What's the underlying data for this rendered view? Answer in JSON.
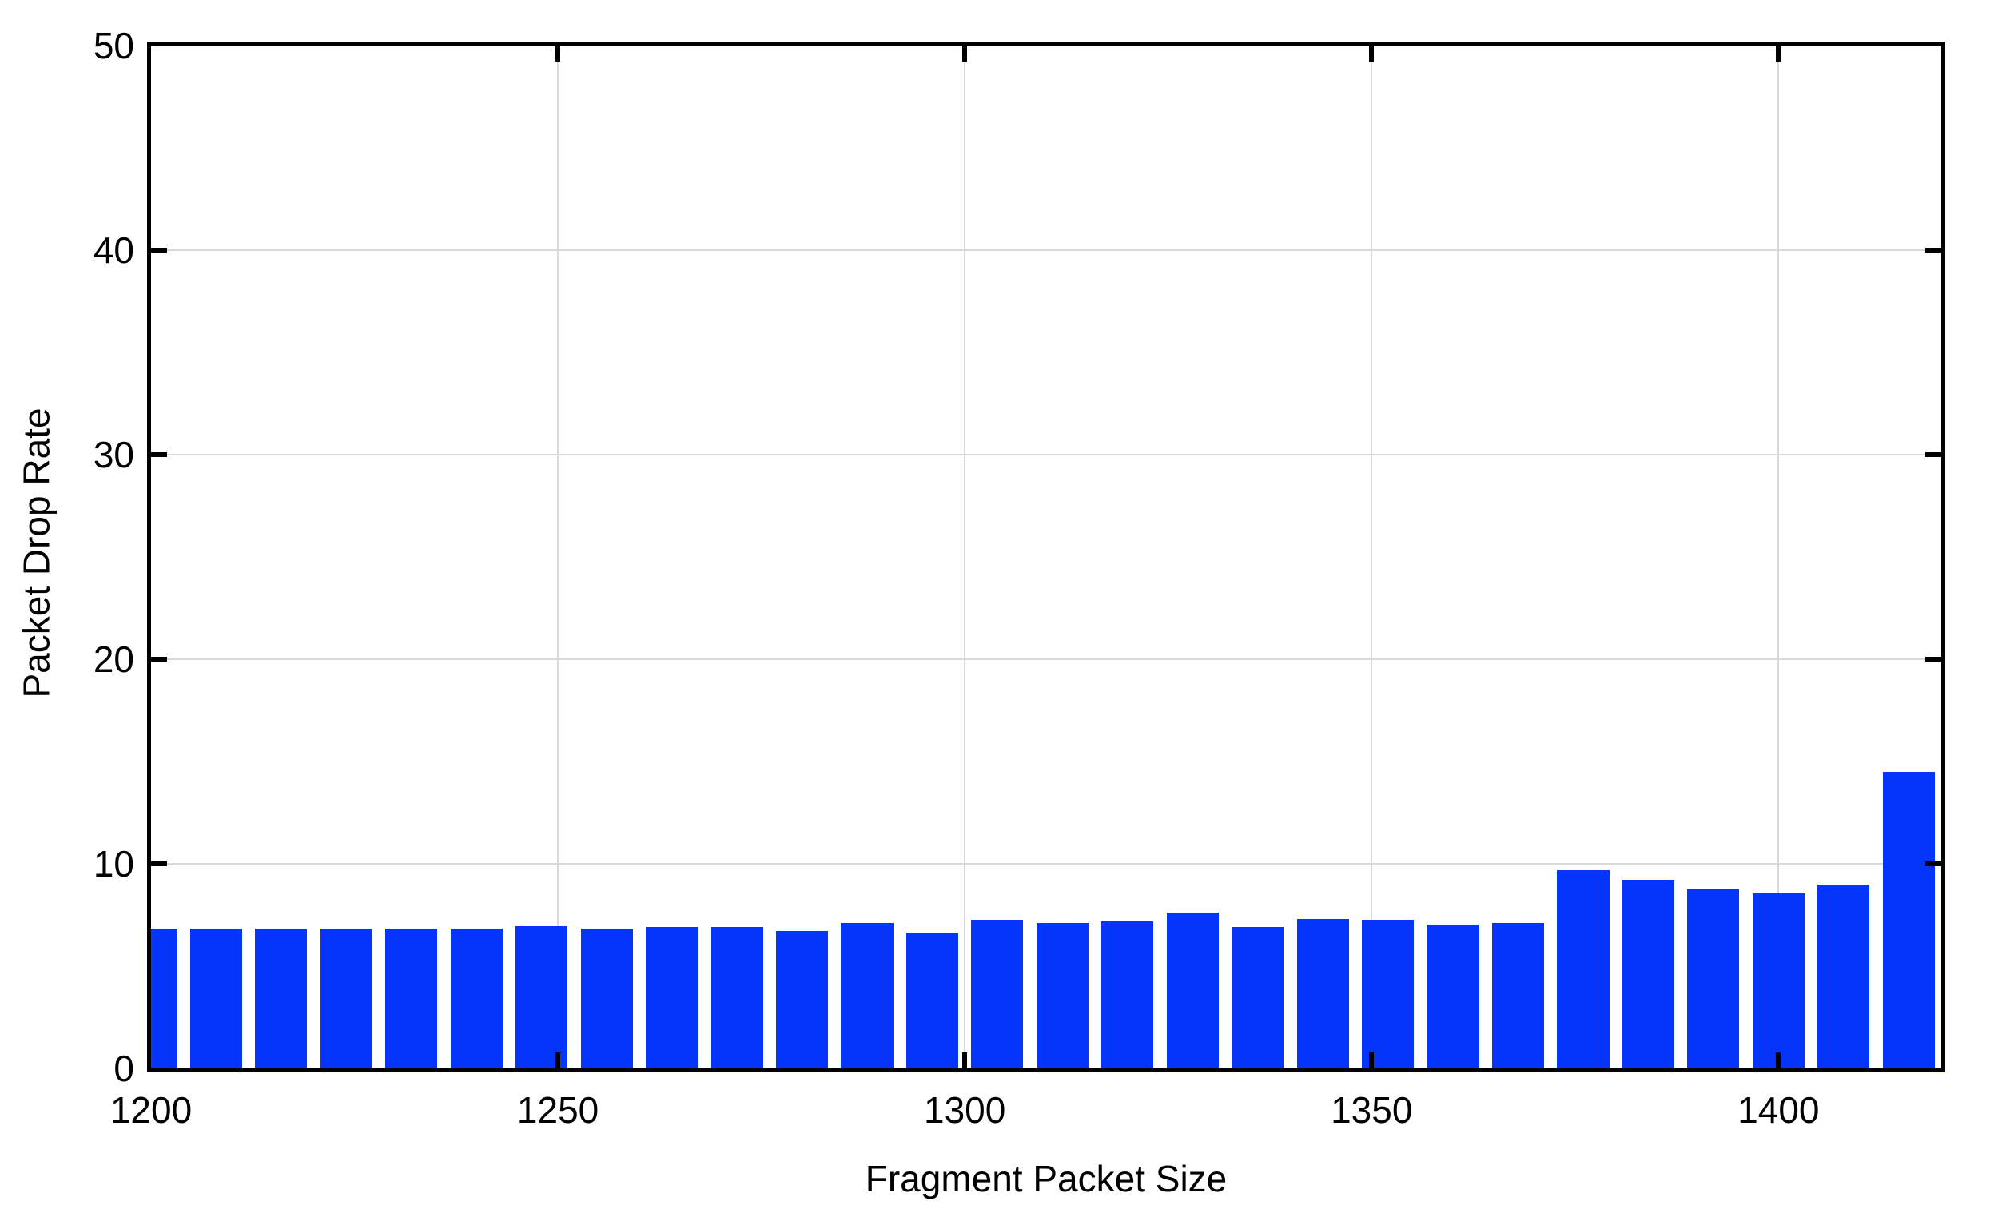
{
  "chart_data": {
    "type": "bar",
    "title": "",
    "xlabel": "Fragment Packet Size",
    "ylabel": "Packet Drop Rate",
    "xlim": [
      1200,
      1420
    ],
    "ylim": [
      0,
      50
    ],
    "x_ticks": [
      1200,
      1250,
      1300,
      1350,
      1400
    ],
    "y_ticks": [
      0,
      10,
      20,
      30,
      40,
      50
    ],
    "grid": true,
    "legend": "none",
    "bar_width": 6.4,
    "x_step": 8,
    "x": [
      1200,
      1208,
      1216,
      1224,
      1232,
      1240,
      1248,
      1256,
      1264,
      1272,
      1280,
      1288,
      1296,
      1304,
      1312,
      1320,
      1328,
      1336,
      1344,
      1352,
      1360,
      1368,
      1376,
      1384,
      1392,
      1400,
      1408,
      1416
    ],
    "values": [
      6.85,
      6.85,
      6.85,
      6.85,
      6.85,
      6.85,
      6.95,
      6.85,
      6.9,
      6.9,
      6.7,
      7.1,
      6.65,
      7.25,
      7.1,
      7.2,
      7.6,
      6.9,
      7.3,
      7.25,
      7.05,
      7.1,
      9.7,
      9.2,
      8.8,
      8.55,
      9.0,
      14.5
    ],
    "colors": {
      "bar": "#0535FB",
      "grid": "#d9d9d9",
      "frame": "#000000",
      "background": "#ffffff",
      "text": "#000000"
    }
  }
}
